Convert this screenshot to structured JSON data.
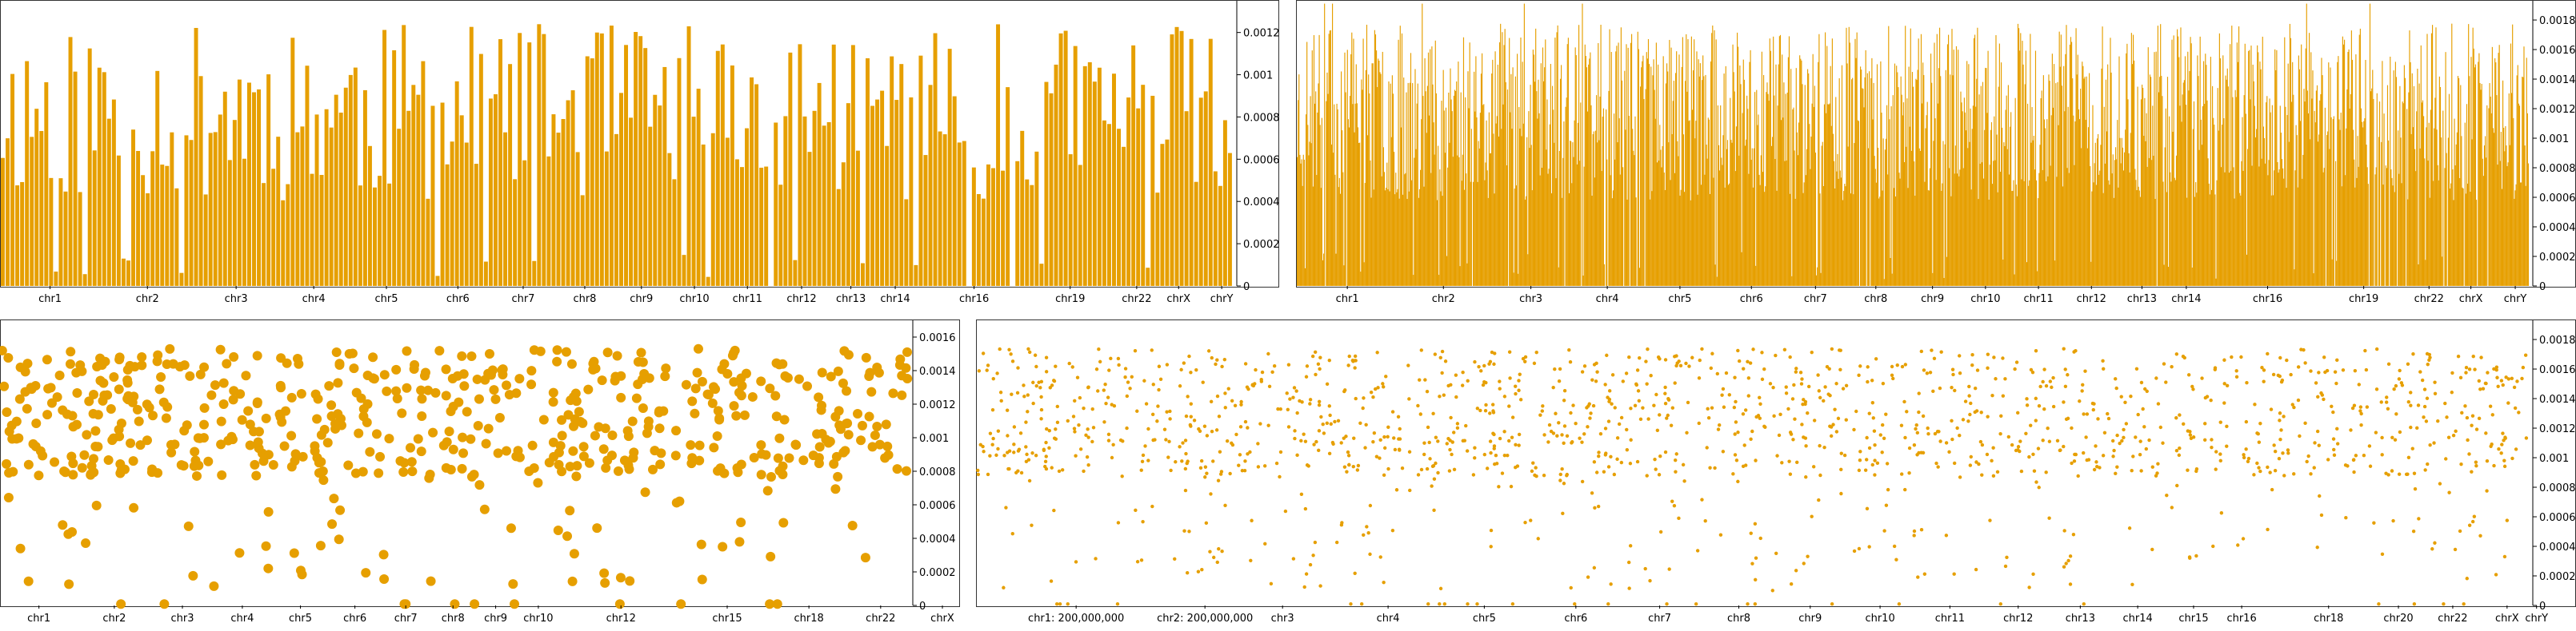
{
  "colors": {
    "series": "#E69F00",
    "axis": "#000000"
  },
  "chart_data": [
    {
      "type": "bar",
      "panel": "top-left",
      "y_ticks": [
        "0",
        "0.0002",
        "0.0004",
        "0.0006",
        "0.0008",
        "0.001",
        "0.0012"
      ],
      "ylim": [
        0,
        0.00135
      ],
      "x_labels": [
        "chr1",
        "chr2",
        "chr3",
        "chr4",
        "chr5",
        "chr6",
        "chr7",
        "chr8",
        "chr9",
        "chr10",
        "chr11",
        "chr12",
        "chr13",
        "chr14",
        "chr16",
        "chr19",
        "chr22",
        "chrX",
        "chrY"
      ],
      "x_label_pos": [
        0.04,
        0.119,
        0.191,
        0.254,
        0.313,
        0.371,
        0.424,
        0.474,
        0.52,
        0.563,
        0.606,
        0.65,
        0.69,
        0.726,
        0.79,
        0.868,
        0.922,
        0.956,
        0.991
      ],
      "bar_count": 255,
      "value_range": [
        0.0,
        0.00135
      ],
      "seed": 11
    },
    {
      "type": "bar",
      "panel": "top-right",
      "y_ticks": [
        "0",
        "0.0002",
        "0.0004",
        "0.0006",
        "0.0008",
        "0.001",
        "0.0012",
        "0.0014",
        "0.0016",
        "0.0018"
      ],
      "ylim": [
        0,
        0.00193
      ],
      "x_labels": [
        "chr1",
        "chr2",
        "chr3",
        "chr4",
        "chr5",
        "chr6",
        "chr7",
        "chr8",
        "chr9",
        "chr10",
        "chr11",
        "chr12",
        "chr13",
        "chr14",
        "chr16",
        "chr19",
        "chr22",
        "chrX",
        "chrY"
      ],
      "x_label_pos": [
        0.041,
        0.119,
        0.19,
        0.252,
        0.311,
        0.369,
        0.421,
        0.47,
        0.516,
        0.559,
        0.602,
        0.645,
        0.686,
        0.722,
        0.788,
        0.866,
        0.919,
        0.953,
        0.989
      ],
      "bar_count": 1400,
      "value_range": [
        0.0,
        0.00193
      ],
      "seed": 23
    },
    {
      "type": "scatter",
      "panel": "bottom-left",
      "y_ticks": [
        "0",
        "0.0002",
        "0.0004",
        "0.0006",
        "0.0008",
        "0.001",
        "0.0012",
        "0.0014",
        "0.0016"
      ],
      "ylim": [
        0,
        0.0017
      ],
      "x_labels": [
        "chr1",
        "chr2",
        "chr3",
        "chr4",
        "chr5",
        "chr6",
        "chr7",
        "chr8",
        "chr9",
        "chr10",
        "chr12",
        "chr15",
        "chr18",
        "chr22",
        "chrX"
      ],
      "x_label_pos": [
        0.042,
        0.125,
        0.2,
        0.266,
        0.33,
        0.39,
        0.446,
        0.498,
        0.545,
        0.592,
        0.683,
        0.8,
        0.89,
        0.969,
        1.037
      ],
      "point_count": 620,
      "point_radius": 6,
      "seed": 37
    },
    {
      "type": "scatter",
      "panel": "bottom-right",
      "y_ticks": [
        "0",
        "0.0002",
        "0.0004",
        "0.0006",
        "0.0008",
        "0.001",
        "0.0012",
        "0.0014",
        "0.0016",
        "0.0018"
      ],
      "ylim": [
        0,
        0.00193
      ],
      "x_labels": [
        "chr1: 200,000,000",
        "chr2: 200,000,000",
        "chr3",
        "chr4",
        "chr5",
        "chr6",
        "chr7",
        "chr8",
        "chr9",
        "chr10",
        "chr11",
        "chr12",
        "chr13",
        "chr14",
        "chr15",
        "chr16",
        "chr18",
        "chr20",
        "chr22",
        "chrX",
        "chrY"
      ],
      "x_label_pos": [
        0.064,
        0.147,
        0.197,
        0.265,
        0.327,
        0.386,
        0.44,
        0.491,
        0.537,
        0.582,
        0.627,
        0.671,
        0.711,
        0.748,
        0.784,
        0.815,
        0.871,
        0.916,
        0.951,
        0.986,
        1.005
      ],
      "point_count": 1500,
      "point_radius": 2.2,
      "seed": 53
    }
  ]
}
